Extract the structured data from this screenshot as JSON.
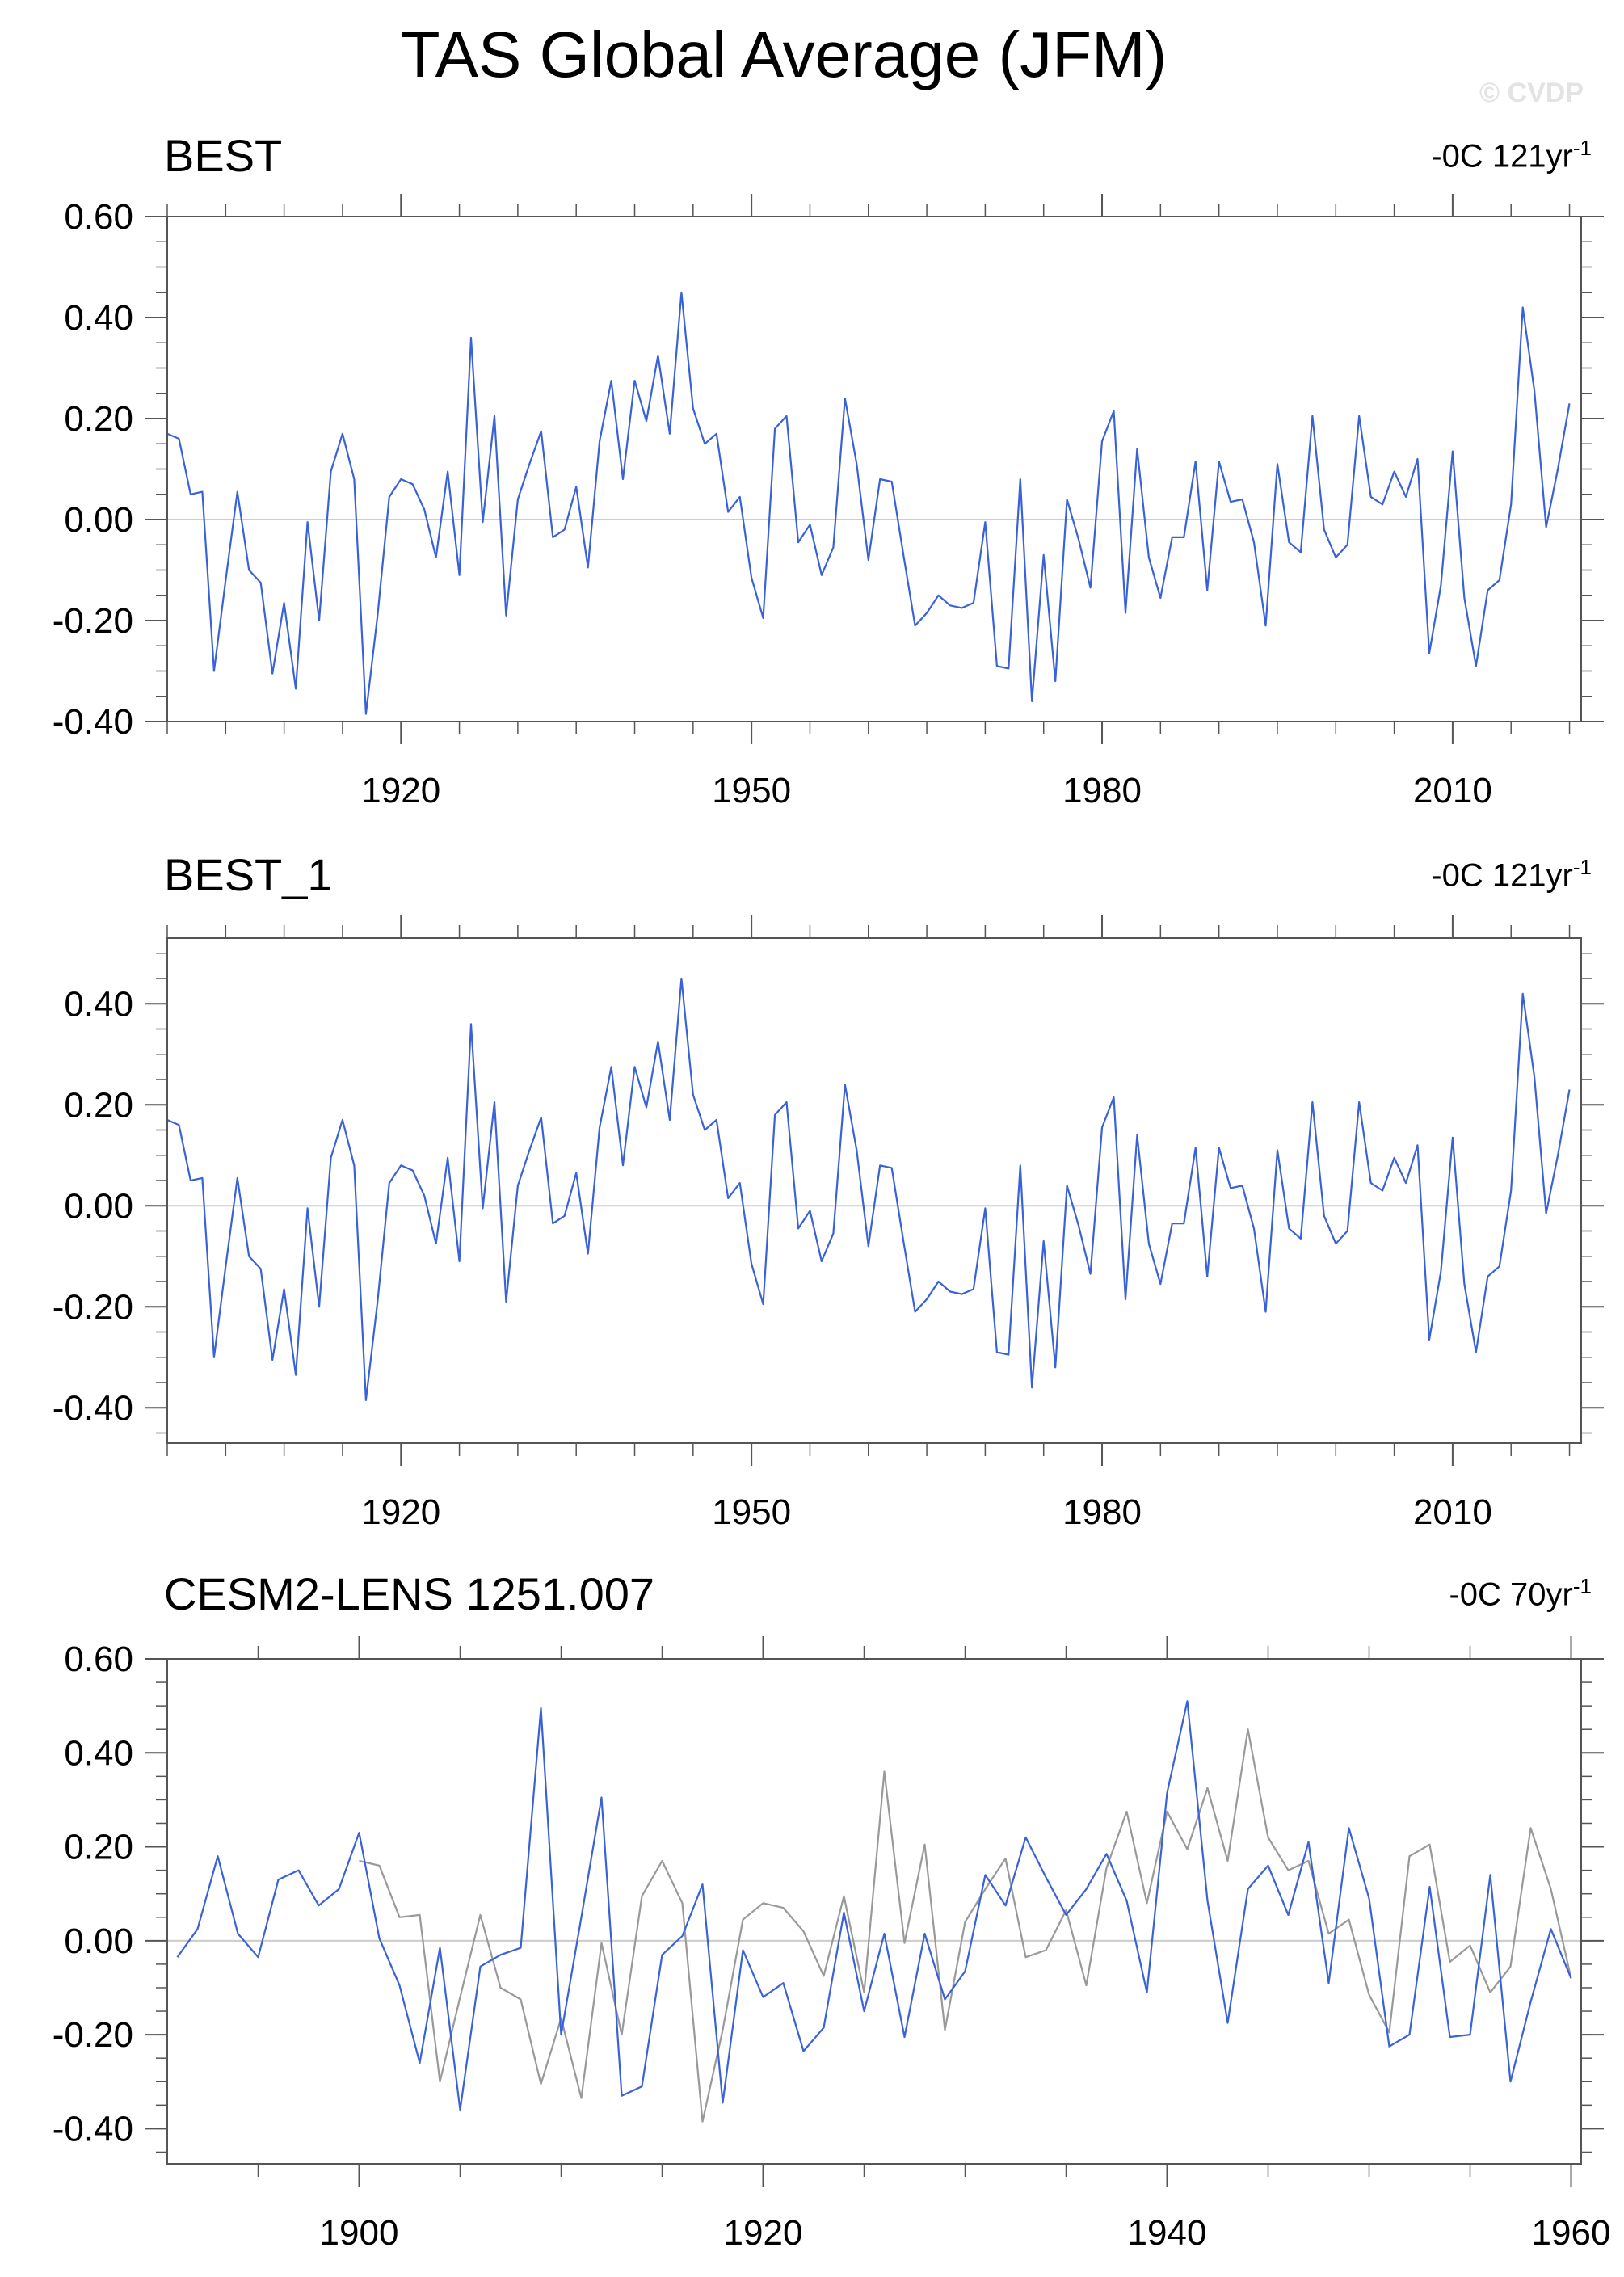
{
  "figure": {
    "title": "TAS Global Average (JFM)",
    "watermark": "© CVDP"
  },
  "panels": [
    {
      "label": "BEST",
      "right_text_main": "-0C 121yr",
      "right_text_sup": "-1"
    },
    {
      "label": "BEST_1",
      "right_text_main": "-0C 121yr",
      "right_text_sup": "-1"
    },
    {
      "label": "CESM2-LENS 1251.007",
      "right_text_main": "-0C 70yr",
      "right_text_sup": "-1"
    }
  ],
  "colors": {
    "series_blue": "#3a62d8",
    "series_gray": "#999999",
    "zero_line": "#cccccc",
    "axis": "#555555"
  },
  "chart_data": [
    {
      "type": "line",
      "panel": "BEST",
      "x_start": 1900,
      "x_step": 1,
      "xlim": [
        1900,
        2021
      ],
      "ylim": [
        -0.4,
        0.6
      ],
      "xticks": [
        1920,
        1950,
        1980,
        2010
      ],
      "yticks": [
        -0.4,
        -0.2,
        0.0,
        0.2,
        0.4,
        0.6
      ],
      "ytick_labels": [
        "-0.40",
        "-0.20",
        "0.00",
        "0.20",
        "0.40",
        "0.60"
      ],
      "series": [
        {
          "color": "#3a62d8",
          "values": [
            0.17,
            0.16,
            0.05,
            0.055,
            -0.3,
            -0.12,
            0.055,
            -0.1,
            -0.125,
            -0.305,
            -0.165,
            -0.335,
            -0.005,
            -0.2,
            0.095,
            0.17,
            0.08,
            -0.385,
            -0.19,
            0.045,
            0.08,
            0.07,
            0.02,
            -0.075,
            0.095,
            -0.11,
            0.36,
            -0.005,
            0.205,
            -0.19,
            0.04,
            0.11,
            0.175,
            -0.035,
            -0.02,
            0.065,
            -0.095,
            0.155,
            0.275,
            0.08,
            0.275,
            0.195,
            0.325,
            0.17,
            0.45,
            0.22,
            0.15,
            0.17,
            0.015,
            0.045,
            -0.115,
            -0.195,
            0.18,
            0.205,
            -0.045,
            -0.01,
            -0.11,
            -0.055,
            0.24,
            0.11,
            -0.08,
            0.08,
            0.075,
            -0.07,
            -0.21,
            -0.185,
            -0.15,
            -0.17,
            -0.175,
            -0.165,
            -0.005,
            -0.29,
            -0.295,
            0.08,
            -0.36,
            -0.07,
            -0.32,
            0.04,
            -0.04,
            -0.135,
            0.155,
            0.215,
            -0.185,
            0.14,
            -0.075,
            -0.155,
            -0.035,
            -0.035,
            0.115,
            -0.14,
            0.115,
            0.035,
            0.04,
            -0.045,
            -0.21,
            0.11,
            -0.045,
            -0.065,
            0.205,
            -0.02,
            -0.075,
            -0.05,
            0.205,
            0.045,
            0.03,
            0.095,
            0.045,
            0.12,
            -0.265,
            -0.13,
            0.135,
            -0.155,
            -0.29,
            -0.14,
            -0.12,
            0.03,
            0.42,
            0.255,
            -0.015,
            0.1,
            0.23
          ]
        }
      ]
    },
    {
      "type": "line",
      "panel": "BEST_1",
      "x_start": 1900,
      "x_step": 1,
      "xlim": [
        1900,
        2021
      ],
      "ylim": [
        -0.47,
        0.53
      ],
      "xticks": [
        1920,
        1950,
        1980,
        2010
      ],
      "yticks": [
        -0.4,
        -0.2,
        0.0,
        0.2,
        0.4
      ],
      "ytick_labels": [
        "-0.40",
        "-0.20",
        "0.00",
        "0.20",
        "0.40"
      ],
      "series": [
        {
          "color": "#3a62d8",
          "values": [
            0.17,
            0.16,
            0.05,
            0.055,
            -0.3,
            -0.12,
            0.055,
            -0.1,
            -0.125,
            -0.305,
            -0.165,
            -0.335,
            -0.005,
            -0.2,
            0.095,
            0.17,
            0.08,
            -0.385,
            -0.19,
            0.045,
            0.08,
            0.07,
            0.02,
            -0.075,
            0.095,
            -0.11,
            0.36,
            -0.005,
            0.205,
            -0.19,
            0.04,
            0.11,
            0.175,
            -0.035,
            -0.02,
            0.065,
            -0.095,
            0.155,
            0.275,
            0.08,
            0.275,
            0.195,
            0.325,
            0.17,
            0.45,
            0.22,
            0.15,
            0.17,
            0.015,
            0.045,
            -0.115,
            -0.195,
            0.18,
            0.205,
            -0.045,
            -0.01,
            -0.11,
            -0.055,
            0.24,
            0.11,
            -0.08,
            0.08,
            0.075,
            -0.07,
            -0.21,
            -0.185,
            -0.15,
            -0.17,
            -0.175,
            -0.165,
            -0.005,
            -0.29,
            -0.295,
            0.08,
            -0.36,
            -0.07,
            -0.32,
            0.04,
            -0.04,
            -0.135,
            0.155,
            0.215,
            -0.185,
            0.14,
            -0.075,
            -0.155,
            -0.035,
            -0.035,
            0.115,
            -0.14,
            0.115,
            0.035,
            0.04,
            -0.045,
            -0.21,
            0.11,
            -0.045,
            -0.065,
            0.205,
            -0.02,
            -0.075,
            -0.05,
            0.205,
            0.045,
            0.03,
            0.095,
            0.045,
            0.12,
            -0.265,
            -0.13,
            0.135,
            -0.155,
            -0.29,
            -0.14,
            -0.12,
            0.03,
            0.42,
            0.255,
            -0.015,
            0.1,
            0.23
          ]
        }
      ]
    },
    {
      "type": "line",
      "panel": "CESM2-LENS 1251.007",
      "xlim": [
        1890.5,
        1960.5
      ],
      "ylim": [
        -0.475,
        0.6
      ],
      "xticks": [
        1900,
        1920,
        1940,
        1960
      ],
      "yticks": [
        -0.4,
        -0.2,
        0.0,
        0.2,
        0.4,
        0.6
      ],
      "ytick_labels": [
        "-0.40",
        "-0.20",
        "0.00",
        "0.20",
        "0.40",
        "0.60"
      ],
      "series": [
        {
          "color": "#999999",
          "x_start": 1900,
          "x_step": 1,
          "values": [
            0.17,
            0.16,
            0.05,
            0.055,
            -0.3,
            -0.12,
            0.055,
            -0.1,
            -0.125,
            -0.305,
            -0.165,
            -0.335,
            -0.005,
            -0.2,
            0.095,
            0.17,
            0.08,
            -0.385,
            -0.19,
            0.045,
            0.08,
            0.07,
            0.02,
            -0.075,
            0.095,
            -0.11,
            0.36,
            -0.005,
            0.205,
            -0.19,
            0.04,
            0.11,
            0.175,
            -0.035,
            -0.02,
            0.065,
            -0.095,
            0.155,
            0.275,
            0.08,
            0.275,
            0.195,
            0.325,
            0.17,
            0.45,
            0.22,
            0.15,
            0.17,
            0.015,
            0.045,
            -0.115,
            -0.195,
            0.18,
            0.205,
            -0.045,
            -0.01,
            -0.11,
            -0.055,
            0.24,
            0.11,
            -0.08
          ]
        },
        {
          "color": "#3a62d8",
          "x_start": 1891,
          "x_step": 1,
          "values": [
            -0.035,
            0.025,
            0.18,
            0.015,
            -0.035,
            0.13,
            0.15,
            0.075,
            0.11,
            0.23,
            0.005,
            -0.095,
            -0.26,
            -0.015,
            -0.36,
            -0.055,
            -0.03,
            -0.015,
            0.495,
            -0.2,
            0.05,
            0.305,
            -0.33,
            -0.31,
            -0.03,
            0.01,
            0.12,
            -0.345,
            -0.02,
            -0.12,
            -0.09,
            -0.235,
            -0.185,
            0.06,
            -0.15,
            0.015,
            -0.205,
            0.015,
            -0.125,
            -0.065,
            0.14,
            0.075,
            0.22,
            0.135,
            0.055,
            0.11,
            0.185,
            0.085,
            -0.11,
            0.315,
            0.51,
            0.085,
            -0.175,
            0.11,
            0.16,
            0.055,
            0.21,
            -0.09,
            0.24,
            0.09,
            -0.225,
            -0.2,
            0.115,
            -0.205,
            -0.2,
            0.14,
            -0.3,
            -0.13,
            0.025,
            -0.08
          ]
        }
      ]
    }
  ]
}
